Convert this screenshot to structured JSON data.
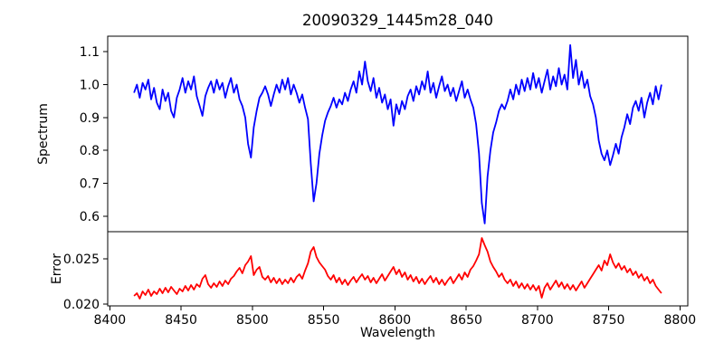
{
  "figure": {
    "background": "#ffffff",
    "axis_color": "#000000"
  },
  "chart_data": {
    "type": "line",
    "title": "20090329_1445m28_040",
    "xlabel": "Wavelength",
    "grid": false,
    "legend": "none",
    "xlim": [
      8398.5,
      8805.5
    ],
    "xticks": [
      8400,
      8450,
      8500,
      8550,
      8600,
      8650,
      8700,
      8750,
      8800
    ],
    "x": [
      8417,
      8419,
      8421,
      8423,
      8425,
      8427,
      8429,
      8431,
      8433,
      8435,
      8437,
      8439,
      8441,
      8443,
      8445,
      8447,
      8449,
      8451,
      8453,
      8455,
      8457,
      8459,
      8461,
      8463,
      8465,
      8467,
      8469,
      8471,
      8473,
      8475,
      8477,
      8479,
      8481,
      8483,
      8485,
      8487,
      8489,
      8491,
      8493,
      8495,
      8497,
      8499,
      8501,
      8503,
      8505,
      8507,
      8509,
      8511,
      8513,
      8515,
      8517,
      8519,
      8521,
      8523,
      8525,
      8527,
      8529,
      8531,
      8533,
      8535,
      8537,
      8539,
      8541,
      8543,
      8545,
      8547,
      8549,
      8551,
      8553,
      8555,
      8557,
      8559,
      8561,
      8563,
      8565,
      8567,
      8569,
      8571,
      8573,
      8575,
      8577,
      8579,
      8581,
      8583,
      8585,
      8587,
      8589,
      8591,
      8593,
      8595,
      8597,
      8599,
      8601,
      8603,
      8605,
      8607,
      8609,
      8611,
      8613,
      8615,
      8617,
      8619,
      8621,
      8623,
      8625,
      8627,
      8629,
      8631,
      8633,
      8635,
      8637,
      8639,
      8641,
      8643,
      8645,
      8647,
      8649,
      8651,
      8653,
      8655,
      8657,
      8659,
      8661,
      8663,
      8665,
      8667,
      8669,
      8671,
      8673,
      8675,
      8677,
      8679,
      8681,
      8683,
      8685,
      8687,
      8689,
      8691,
      8693,
      8695,
      8697,
      8699,
      8701,
      8703,
      8705,
      8707,
      8709,
      8711,
      8713,
      8715,
      8717,
      8719,
      8721,
      8723,
      8725,
      8727,
      8729,
      8731,
      8733,
      8735,
      8737,
      8739,
      8741,
      8743,
      8745,
      8747,
      8749,
      8751,
      8753,
      8755,
      8757,
      8759,
      8761,
      8763,
      8765,
      8767,
      8769,
      8771,
      8773,
      8775,
      8777,
      8779,
      8781,
      8783,
      8785,
      8787
    ],
    "subplots": [
      {
        "name": "spectrum",
        "ylabel": "Spectrum",
        "color": "#0000ff",
        "ylim": [
          0.553,
          1.147
        ],
        "yticks": [
          "1.1",
          "1.0",
          "0.9",
          "0.8",
          "0.7",
          "0.6"
        ],
        "absorption_line_centers": [
          8498,
          8542,
          8662,
          8750
        ],
        "values": [
          0.975,
          1.0,
          0.96,
          1.005,
          0.985,
          1.015,
          0.955,
          0.99,
          0.945,
          0.925,
          0.985,
          0.95,
          0.975,
          0.92,
          0.9,
          0.96,
          0.985,
          1.02,
          0.975,
          1.01,
          0.985,
          1.025,
          0.965,
          0.935,
          0.905,
          0.965,
          0.99,
          1.01,
          0.975,
          1.015,
          0.985,
          1.005,
          0.96,
          0.995,
          1.02,
          0.975,
          1.0,
          0.955,
          0.935,
          0.9,
          0.82,
          0.778,
          0.87,
          0.92,
          0.96,
          0.975,
          0.995,
          0.97,
          0.935,
          0.97,
          1.0,
          0.975,
          1.015,
          0.985,
          1.02,
          0.97,
          1.0,
          0.975,
          0.945,
          0.97,
          0.93,
          0.895,
          0.76,
          0.645,
          0.7,
          0.79,
          0.845,
          0.89,
          0.915,
          0.935,
          0.96,
          0.93,
          0.955,
          0.94,
          0.975,
          0.95,
          0.985,
          1.01,
          0.975,
          1.04,
          1.0,
          1.07,
          1.01,
          0.98,
          1.02,
          0.96,
          0.99,
          0.945,
          0.97,
          0.925,
          0.955,
          0.875,
          0.94,
          0.91,
          0.95,
          0.925,
          0.965,
          0.985,
          0.95,
          0.995,
          0.97,
          1.01,
          0.985,
          1.04,
          0.975,
          1.005,
          0.96,
          0.995,
          1.025,
          0.98,
          1.0,
          0.965,
          0.99,
          0.95,
          0.98,
          1.01,
          0.96,
          0.985,
          0.955,
          0.93,
          0.88,
          0.79,
          0.64,
          0.578,
          0.72,
          0.8,
          0.855,
          0.885,
          0.92,
          0.94,
          0.925,
          0.95,
          0.985,
          0.955,
          1.0,
          0.97,
          1.015,
          0.98,
          1.02,
          0.985,
          1.035,
          0.99,
          1.02,
          0.975,
          1.01,
          1.045,
          0.985,
          1.025,
          0.995,
          1.05,
          1.0,
          1.03,
          0.985,
          1.12,
          1.02,
          1.075,
          1.0,
          1.04,
          0.99,
          1.015,
          0.965,
          0.94,
          0.9,
          0.83,
          0.79,
          0.77,
          0.8,
          0.755,
          0.785,
          0.82,
          0.79,
          0.84,
          0.87,
          0.91,
          0.88,
          0.93,
          0.95,
          0.92,
          0.96,
          0.9,
          0.945,
          0.975,
          0.94,
          0.995,
          0.955,
          1.0
        ]
      },
      {
        "name": "error",
        "ylabel": "Error",
        "color": "#ff0000",
        "ylim": [
          0.0198,
          0.028
        ],
        "yticks": [
          "0.025",
          "0.020"
        ],
        "values": [
          0.0209,
          0.0212,
          0.0206,
          0.0214,
          0.021,
          0.0216,
          0.0209,
          0.0214,
          0.0211,
          0.0217,
          0.0212,
          0.0218,
          0.0213,
          0.0219,
          0.0215,
          0.0211,
          0.0217,
          0.0214,
          0.022,
          0.0215,
          0.0221,
          0.0216,
          0.0222,
          0.0219,
          0.0228,
          0.0232,
          0.0222,
          0.0218,
          0.0223,
          0.0219,
          0.0225,
          0.022,
          0.0226,
          0.0222,
          0.0228,
          0.0231,
          0.0236,
          0.024,
          0.0234,
          0.0243,
          0.0247,
          0.0253,
          0.0232,
          0.0238,
          0.0241,
          0.023,
          0.0227,
          0.0231,
          0.0224,
          0.0229,
          0.0223,
          0.0228,
          0.0222,
          0.0227,
          0.0223,
          0.0229,
          0.0224,
          0.023,
          0.0233,
          0.0228,
          0.0237,
          0.0245,
          0.0258,
          0.0263,
          0.0252,
          0.0246,
          0.0242,
          0.0238,
          0.0231,
          0.0227,
          0.0232,
          0.0224,
          0.0229,
          0.0222,
          0.0227,
          0.0221,
          0.0226,
          0.023,
          0.0224,
          0.0229,
          0.0233,
          0.0227,
          0.0231,
          0.0224,
          0.0229,
          0.0223,
          0.0228,
          0.0233,
          0.0226,
          0.0231,
          0.0236,
          0.0241,
          0.0233,
          0.0238,
          0.023,
          0.0235,
          0.0227,
          0.0232,
          0.0225,
          0.023,
          0.0223,
          0.0228,
          0.0222,
          0.0227,
          0.0231,
          0.0224,
          0.0229,
          0.0222,
          0.0227,
          0.0221,
          0.0226,
          0.023,
          0.0223,
          0.0228,
          0.0233,
          0.0227,
          0.0235,
          0.023,
          0.0238,
          0.0242,
          0.0248,
          0.0255,
          0.0273,
          0.0265,
          0.0258,
          0.0247,
          0.0241,
          0.0236,
          0.023,
          0.0234,
          0.0227,
          0.0223,
          0.0227,
          0.022,
          0.0225,
          0.0218,
          0.0223,
          0.0217,
          0.0222,
          0.0216,
          0.0221,
          0.0215,
          0.022,
          0.0207,
          0.0218,
          0.0223,
          0.0216,
          0.0221,
          0.0226,
          0.0219,
          0.0224,
          0.0217,
          0.0222,
          0.0216,
          0.0221,
          0.0215,
          0.022,
          0.0225,
          0.0218,
          0.0223,
          0.0228,
          0.0233,
          0.0238,
          0.0243,
          0.0237,
          0.0248,
          0.0243,
          0.0255,
          0.0246,
          0.024,
          0.0245,
          0.0238,
          0.0242,
          0.0235,
          0.0239,
          0.0232,
          0.0236,
          0.0229,
          0.0233,
          0.0226,
          0.023,
          0.0223,
          0.0227,
          0.022,
          0.0216,
          0.0212
        ]
      }
    ]
  }
}
